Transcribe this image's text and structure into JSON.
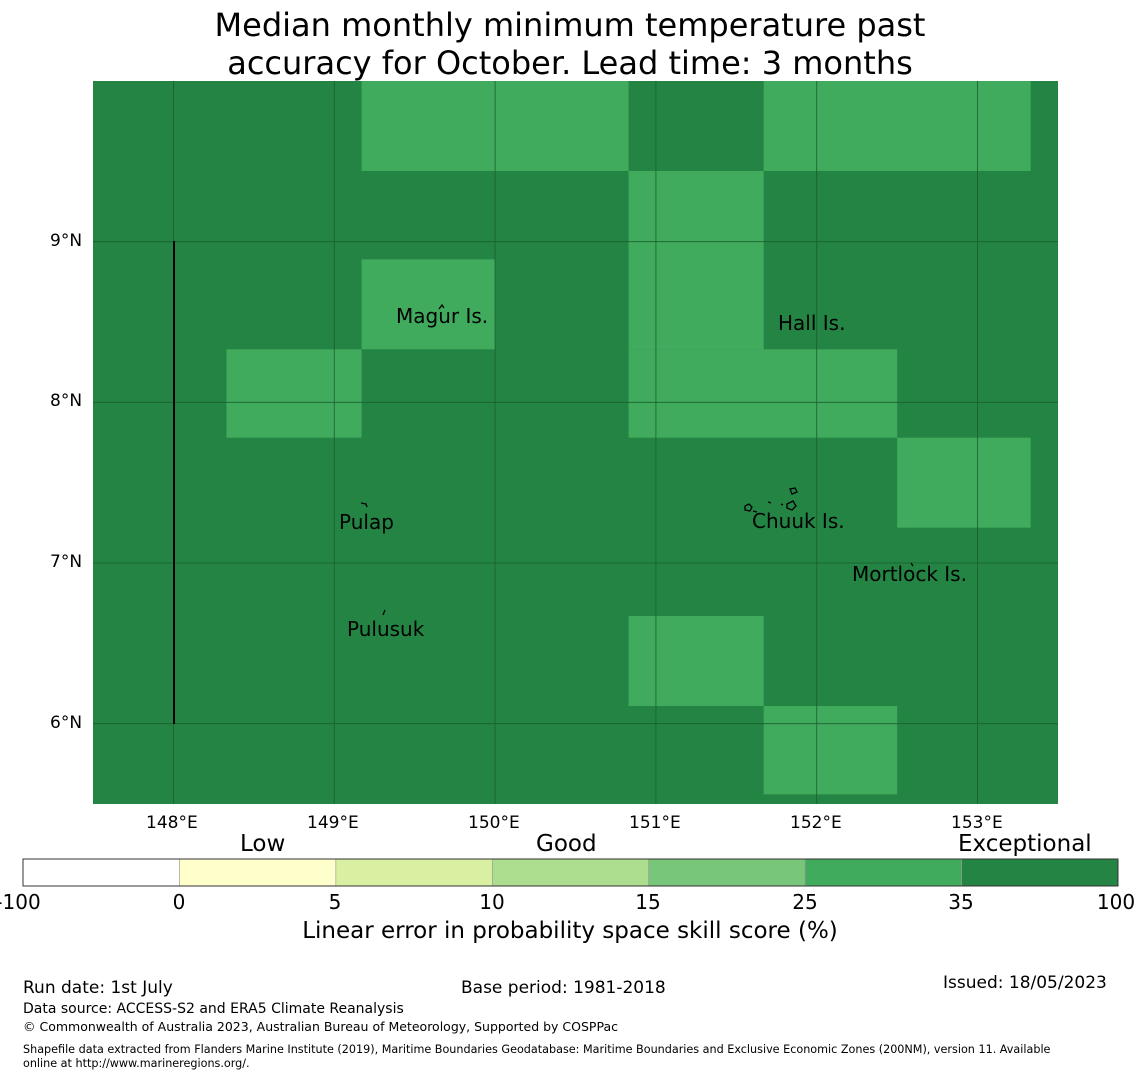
{
  "title_line1": "Median monthly minimum temperature past",
  "title_line2": "accuracy for October. Lead time: 3 months",
  "map": {
    "lon_range": [
      147.5,
      153.5
    ],
    "lat_range": [
      5.5,
      10.0
    ],
    "lon_ticks": [
      "148°E",
      "149°E",
      "150°E",
      "151°E",
      "152°E",
      "153°E"
    ],
    "lat_ticks": [
      "9°N",
      "8°N",
      "7°N",
      "6°N"
    ],
    "colors": {
      "exceptional": "#238443",
      "good_high": "#41ab5d"
    },
    "places": [
      {
        "name": "Magur Is."
      },
      {
        "name": "Hall Is."
      },
      {
        "name": "Pulap"
      },
      {
        "name": "Chuuk Is."
      },
      {
        "name": "Mortlock Is."
      },
      {
        "name": "Pulusuk"
      }
    ],
    "skill_grid_lighter_cells": [
      {
        "lon": [
          149.17,
          150.83
        ],
        "lat": [
          9.44,
          10.0
        ]
      },
      {
        "lon": [
          150.83,
          151.67
        ],
        "lat": [
          8.33,
          9.44
        ]
      },
      {
        "lon": [
          151.67,
          153.33
        ],
        "lat": [
          9.44,
          10.0
        ]
      },
      {
        "lon": [
          149.17,
          150.0
        ],
        "lat": [
          8.33,
          8.89
        ]
      },
      {
        "lon": [
          148.33,
          149.17
        ],
        "lat": [
          7.78,
          8.33
        ]
      },
      {
        "lon": [
          150.83,
          152.5
        ],
        "lat": [
          7.78,
          8.33
        ]
      },
      {
        "lon": [
          152.5,
          153.33
        ],
        "lat": [
          7.22,
          7.78
        ]
      },
      {
        "lon": [
          150.83,
          151.67
        ],
        "lat": [
          6.11,
          6.67
        ]
      },
      {
        "lon": [
          151.67,
          152.5
        ],
        "lat": [
          5.56,
          6.11
        ]
      }
    ]
  },
  "colorbar": {
    "categories": [
      "Low",
      "Good",
      "Exceptional"
    ],
    "ticks": [
      "-100",
      "0",
      "5",
      "10",
      "15",
      "25",
      "35",
      "100"
    ],
    "colors": [
      "#ffffff",
      "#ffffcc",
      "#d9f0a3",
      "#addd8e",
      "#78c679",
      "#41ab5d",
      "#238443"
    ],
    "label": "Linear error in probability space skill score (%)"
  },
  "footer": {
    "run_date": "Run date: 1st July",
    "base_period": "Base period: 1981-2018",
    "issued": "Issued: 18/05/2023",
    "data_source": "Data source: ACCESS-S2 and ERA5 Climate Reanalysis",
    "copyright": "© Commonwealth of Australia 2023, Australian Bureau of Meteorology, Supported by COSPPac",
    "shapefile_line1": "Shapefile data extracted from Flanders Marine Institute (2019), Maritime Boundaries Geodatabase: Maritime Boundaries and Exclusive Economic Zones (200NM), version 11. Available",
    "shapefile_line2": "online at http://www.marineregions.org/."
  }
}
